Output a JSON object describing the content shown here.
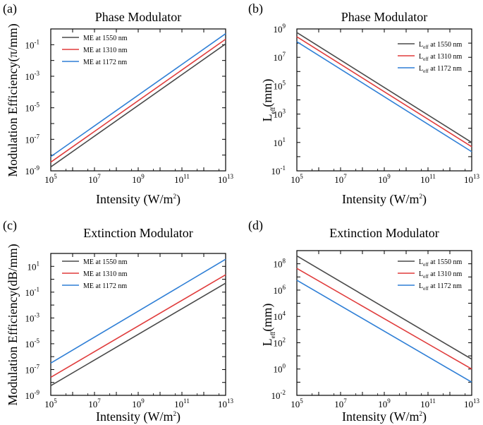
{
  "chart_data": [
    {
      "panel_label": "(a)",
      "type": "line",
      "title": "Phase Modulator",
      "xlabel": {
        "main": "Intensity (W/m",
        "sup": "2",
        "tail": ")"
      },
      "ylabel": {
        "main": "Modulation Efficiency(π/mm)"
      },
      "xscale": "log",
      "yscale": "log",
      "xlim_exp": [
        5,
        13
      ],
      "ylim_exp": [
        -9,
        0
      ],
      "x_tick_exponents": [
        5,
        7,
        9,
        11,
        13
      ],
      "y_tick_exponents": [
        -9,
        -7,
        -5,
        -3,
        -1
      ],
      "legend_position": "top-left",
      "series": [
        {
          "name": "ME at 1550 nm",
          "legend_main": "ME at 1550 nm",
          "color": "#4a4a4a",
          "x_exp": [
            5,
            13
          ],
          "y_exp": [
            -8.75,
            -0.95
          ]
        },
        {
          "name": "ME at 1310 nm",
          "legend_main": "ME at 1310 nm",
          "color": "#e03c3c",
          "x_exp": [
            5,
            13
          ],
          "y_exp": [
            -8.45,
            -0.65
          ]
        },
        {
          "name": "ME at 1172 nm",
          "legend_main": "ME at 1172 nm",
          "color": "#2f7fd6",
          "x_exp": [
            5,
            13
          ],
          "y_exp": [
            -8.1,
            -0.3
          ]
        }
      ]
    },
    {
      "panel_label": "(b)",
      "type": "line",
      "title": "Phase Modulator",
      "xlabel": {
        "main": "Intensity (W/m",
        "sup": "2",
        "tail": ")"
      },
      "ylabel": {
        "main": "L",
        "sub": "eff",
        "tail": "(mm)"
      },
      "xscale": "log",
      "yscale": "log",
      "xlim_exp": [
        5,
        13
      ],
      "ylim_exp": [
        -1,
        9
      ],
      "x_tick_exponents": [
        5,
        7,
        9,
        11,
        13
      ],
      "y_tick_exponents": [
        -1,
        1,
        3,
        5,
        7,
        9
      ],
      "legend_position": "top-right",
      "series": [
        {
          "name": "Leff at 1550 nm",
          "legend_main": "L",
          "legend_sub": "eff",
          "legend_tail": " at 1550 nm",
          "color": "#4a4a4a",
          "x_exp": [
            5,
            13
          ],
          "y_exp": [
            8.75,
            1.0
          ]
        },
        {
          "name": "Leff at 1310 nm",
          "legend_main": "L",
          "legend_sub": "eff",
          "legend_tail": " at 1310 nm",
          "color": "#e03c3c",
          "x_exp": [
            5,
            13
          ],
          "y_exp": [
            8.45,
            0.7
          ]
        },
        {
          "name": "Leff at 1172 nm",
          "legend_main": "L",
          "legend_sub": "eff",
          "legend_tail": " at 1172 nm",
          "color": "#2f7fd6",
          "x_exp": [
            5,
            13
          ],
          "y_exp": [
            8.1,
            0.35
          ]
        }
      ]
    },
    {
      "panel_label": "(c)",
      "type": "line",
      "title": "Extinction Modulator",
      "xlabel": {
        "main": "Intensity (W/m",
        "sup": "2",
        "tail": ")"
      },
      "ylabel": {
        "main": "Modulation Efficiency(dB/mm)"
      },
      "xscale": "log",
      "yscale": "log",
      "xlim_exp": [
        5,
        13
      ],
      "ylim_exp": [
        -9,
        2
      ],
      "x_tick_exponents": [
        5,
        7,
        9,
        11,
        13
      ],
      "y_tick_exponents": [
        -9,
        -7,
        -5,
        -3,
        -1,
        1
      ],
      "legend_position": "top-left",
      "series": [
        {
          "name": "ME at 1550 nm",
          "legend_main": "ME at 1550 nm",
          "color": "#4a4a4a",
          "x_exp": [
            5,
            13
          ],
          "y_exp": [
            -8.25,
            -0.3
          ]
        },
        {
          "name": "ME at 1310 nm",
          "legend_main": "ME at 1310 nm",
          "color": "#e03c3c",
          "x_exp": [
            5,
            13
          ],
          "y_exp": [
            -7.6,
            0.35
          ]
        },
        {
          "name": "ME at 1172 nm",
          "legend_main": "ME at 1172 nm",
          "color": "#2f7fd6",
          "x_exp": [
            5,
            13
          ],
          "y_exp": [
            -6.5,
            1.55
          ]
        }
      ]
    },
    {
      "panel_label": "(d)",
      "type": "line",
      "title": "Extinction Modulator",
      "xlabel": {
        "main": "Intensity (W/m",
        "sup": "2",
        "tail": ")"
      },
      "ylabel": {
        "main": "L",
        "sub": "eff",
        "tail": "(mm)"
      },
      "xscale": "log",
      "yscale": "log",
      "xlim_exp": [
        5,
        13
      ],
      "ylim_exp": [
        -2,
        9
      ],
      "x_tick_exponents": [
        5,
        7,
        9,
        11,
        13
      ],
      "y_tick_exponents": [
        -2,
        0,
        2,
        4,
        6,
        8
      ],
      "legend_position": "top-right",
      "series": [
        {
          "name": "Leff at 1550 nm",
          "legend_main": "L",
          "legend_sub": "eff",
          "legend_tail": " at 1550 nm",
          "color": "#4a4a4a",
          "x_exp": [
            5,
            13
          ],
          "y_exp": [
            8.6,
            0.75
          ]
        },
        {
          "name": "Leff at 1310 nm",
          "legend_main": "L",
          "legend_sub": "eff",
          "legend_tail": " at 1310 nm",
          "color": "#e03c3c",
          "x_exp": [
            5,
            13
          ],
          "y_exp": [
            7.65,
            0.0
          ]
        },
        {
          "name": "Leff at 1172 nm",
          "legend_main": "L",
          "legend_sub": "eff",
          "legend_tail": " at 1172 nm",
          "color": "#2f7fd6",
          "x_exp": [
            5,
            13
          ],
          "y_exp": [
            6.75,
            -1.0
          ]
        }
      ]
    }
  ]
}
